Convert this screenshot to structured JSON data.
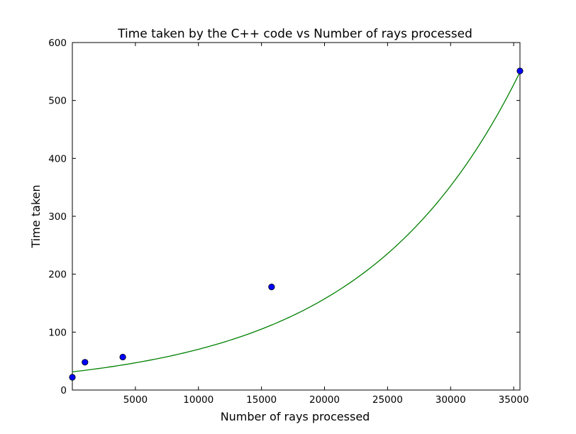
{
  "chart_data": {
    "type": "scatter",
    "title": "Time taken by the C++ code vs Number of rays processed",
    "xlabel": "Number of rays processed",
    "ylabel": "Time taken",
    "xlim": [
      0,
      35500
    ],
    "ylim": [
      0,
      600
    ],
    "xticks": [
      5000,
      10000,
      15000,
      20000,
      25000,
      30000,
      35000
    ],
    "xtick_labels": [
      "5000",
      "10000",
      "15000",
      "20000",
      "25000",
      "30000",
      "35000"
    ],
    "yticks": [
      0,
      100,
      200,
      300,
      400,
      500,
      600
    ],
    "ytick_labels": [
      "0",
      "100",
      "200",
      "300",
      "400",
      "500",
      "600"
    ],
    "grid": false,
    "legend": "none",
    "series": [
      {
        "kind": "scatter",
        "color": "#0000ff",
        "edge_color": "#000000",
        "points": [
          {
            "x": 0,
            "y": 22
          },
          {
            "x": 1000,
            "y": 48
          },
          {
            "x": 4000,
            "y": 57
          },
          {
            "x": 15800,
            "y": 178
          },
          {
            "x": 35500,
            "y": 551
          }
        ]
      },
      {
        "kind": "line",
        "color": "#008000",
        "fit": "exponential",
        "params": {
          "a": 31.4,
          "b": 8.06e-05
        }
      }
    ]
  }
}
